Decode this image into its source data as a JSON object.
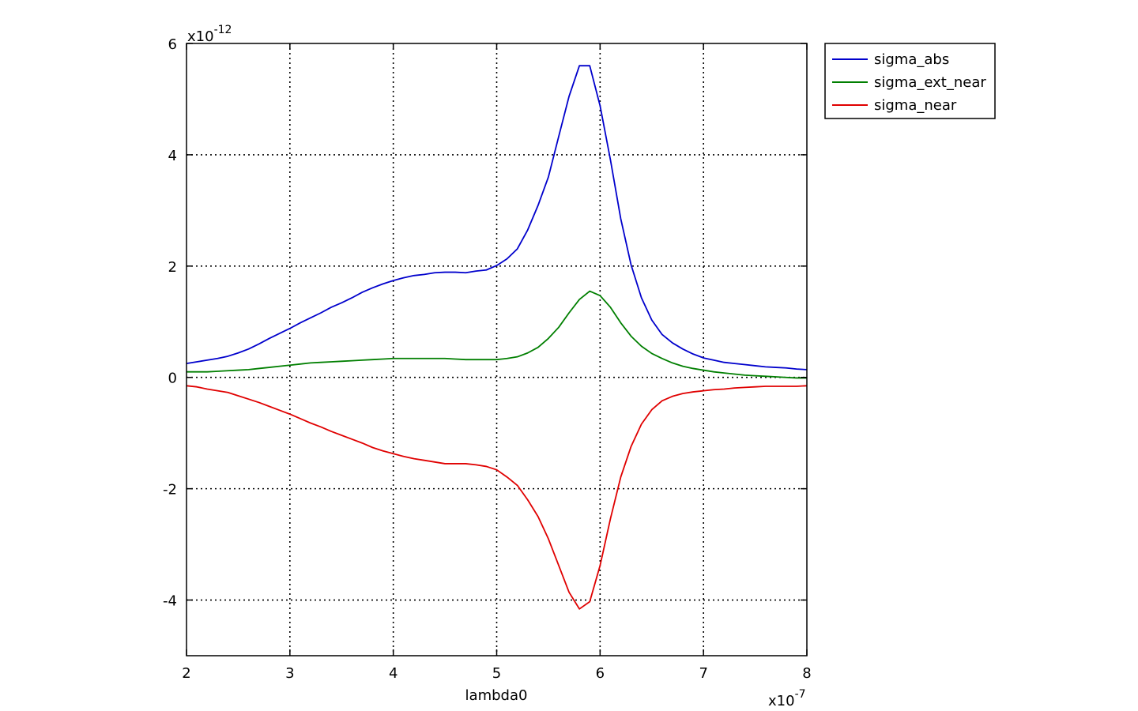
{
  "chart_data": {
    "type": "line",
    "title": "",
    "xlabel": "lambda0",
    "ylabel": "",
    "x_multiplier": {
      "base": "x10",
      "exponent": "-7"
    },
    "y_multiplier": {
      "base": "x10",
      "exponent": "-12"
    },
    "xlim": [
      2,
      8
    ],
    "ylim": [
      -5,
      6
    ],
    "x_ticks": [
      2,
      3,
      4,
      5,
      6,
      7,
      8
    ],
    "y_ticks": [
      -4,
      -2,
      0,
      2,
      4,
      6
    ],
    "x_tick_labels": [
      "2",
      "3",
      "4",
      "5",
      "6",
      "7",
      "8"
    ],
    "y_tick_labels": [
      "-4",
      "-2",
      "0",
      "2",
      "4",
      "6"
    ],
    "grid": true,
    "legend": "outside-top-right",
    "series": [
      {
        "name": "sigma_abs",
        "color": "#0000cc",
        "x": [
          2.0,
          2.1,
          2.2,
          2.3,
          2.4,
          2.5,
          2.6,
          2.7,
          2.8,
          2.9,
          3.0,
          3.1,
          3.2,
          3.3,
          3.4,
          3.5,
          3.6,
          3.7,
          3.8,
          3.9,
          4.0,
          4.1,
          4.2,
          4.3,
          4.4,
          4.5,
          4.6,
          4.7,
          4.8,
          4.9,
          5.0,
          5.1,
          5.2,
          5.3,
          5.4,
          5.5,
          5.6,
          5.7,
          5.8,
          5.9,
          6.0,
          6.1,
          6.2,
          6.3,
          6.4,
          6.5,
          6.6,
          6.7,
          6.8,
          6.9,
          7.0,
          7.1,
          7.2,
          7.3,
          7.4,
          7.5,
          7.6,
          7.7,
          7.8,
          7.9,
          8.0
        ],
        "y": [
          0.25,
          0.28,
          0.31,
          0.34,
          0.38,
          0.44,
          0.51,
          0.6,
          0.7,
          0.79,
          0.88,
          0.98,
          1.07,
          1.16,
          1.26,
          1.34,
          1.43,
          1.53,
          1.61,
          1.68,
          1.74,
          1.79,
          1.83,
          1.85,
          1.88,
          1.89,
          1.89,
          1.88,
          1.91,
          1.93,
          2.01,
          2.13,
          2.31,
          2.65,
          3.09,
          3.6,
          4.33,
          5.05,
          5.6,
          5.6,
          4.88,
          3.91,
          2.85,
          2.02,
          1.43,
          1.03,
          0.77,
          0.62,
          0.51,
          0.42,
          0.35,
          0.31,
          0.27,
          0.25,
          0.23,
          0.21,
          0.19,
          0.18,
          0.17,
          0.15,
          0.14
        ]
      },
      {
        "name": "sigma_ext_near",
        "color": "#007f00",
        "x": [
          2.0,
          2.1,
          2.2,
          2.3,
          2.4,
          2.5,
          2.6,
          2.7,
          2.8,
          2.9,
          3.0,
          3.1,
          3.2,
          3.3,
          3.4,
          3.5,
          3.6,
          3.7,
          3.8,
          3.9,
          4.0,
          4.1,
          4.2,
          4.3,
          4.4,
          4.5,
          4.6,
          4.7,
          4.8,
          4.9,
          5.0,
          5.1,
          5.2,
          5.3,
          5.4,
          5.5,
          5.6,
          5.7,
          5.8,
          5.9,
          6.0,
          6.1,
          6.2,
          6.3,
          6.4,
          6.5,
          6.6,
          6.7,
          6.8,
          6.9,
          7.0,
          7.1,
          7.2,
          7.3,
          7.4,
          7.5,
          7.6,
          7.7,
          7.8,
          7.9,
          8.0
        ],
        "y": [
          0.1,
          0.1,
          0.1,
          0.11,
          0.12,
          0.13,
          0.14,
          0.16,
          0.18,
          0.2,
          0.22,
          0.24,
          0.26,
          0.27,
          0.28,
          0.29,
          0.3,
          0.31,
          0.32,
          0.33,
          0.34,
          0.34,
          0.34,
          0.34,
          0.34,
          0.34,
          0.33,
          0.32,
          0.32,
          0.32,
          0.32,
          0.34,
          0.37,
          0.44,
          0.54,
          0.7,
          0.9,
          1.16,
          1.4,
          1.55,
          1.47,
          1.26,
          0.98,
          0.74,
          0.56,
          0.43,
          0.34,
          0.26,
          0.2,
          0.16,
          0.13,
          0.1,
          0.08,
          0.06,
          0.04,
          0.03,
          0.02,
          0.01,
          0.0,
          -0.01,
          -0.01
        ]
      },
      {
        "name": "sigma_near",
        "color": "#e00000",
        "x": [
          2.0,
          2.1,
          2.2,
          2.3,
          2.4,
          2.5,
          2.6,
          2.7,
          2.8,
          2.9,
          3.0,
          3.1,
          3.2,
          3.3,
          3.4,
          3.5,
          3.6,
          3.7,
          3.8,
          3.9,
          4.0,
          4.1,
          4.2,
          4.3,
          4.4,
          4.5,
          4.6,
          4.7,
          4.8,
          4.9,
          5.0,
          5.1,
          5.2,
          5.3,
          5.4,
          5.5,
          5.6,
          5.7,
          5.8,
          5.9,
          6.0,
          6.1,
          6.2,
          6.3,
          6.4,
          6.5,
          6.6,
          6.7,
          6.8,
          6.9,
          7.0,
          7.1,
          7.2,
          7.3,
          7.4,
          7.5,
          7.6,
          7.7,
          7.8,
          7.9,
          8.0
        ],
        "y": [
          -0.15,
          -0.17,
          -0.21,
          -0.24,
          -0.27,
          -0.33,
          -0.39,
          -0.45,
          -0.52,
          -0.59,
          -0.66,
          -0.74,
          -0.82,
          -0.89,
          -0.97,
          -1.04,
          -1.11,
          -1.18,
          -1.26,
          -1.32,
          -1.37,
          -1.42,
          -1.46,
          -1.49,
          -1.52,
          -1.55,
          -1.55,
          -1.55,
          -1.57,
          -1.6,
          -1.66,
          -1.79,
          -1.94,
          -2.2,
          -2.5,
          -2.9,
          -3.38,
          -3.86,
          -4.16,
          -4.03,
          -3.38,
          -2.54,
          -1.79,
          -1.24,
          -0.84,
          -0.58,
          -0.42,
          -0.34,
          -0.29,
          -0.26,
          -0.24,
          -0.22,
          -0.21,
          -0.19,
          -0.18,
          -0.17,
          -0.16,
          -0.16,
          -0.16,
          -0.16,
          -0.15
        ]
      }
    ]
  }
}
